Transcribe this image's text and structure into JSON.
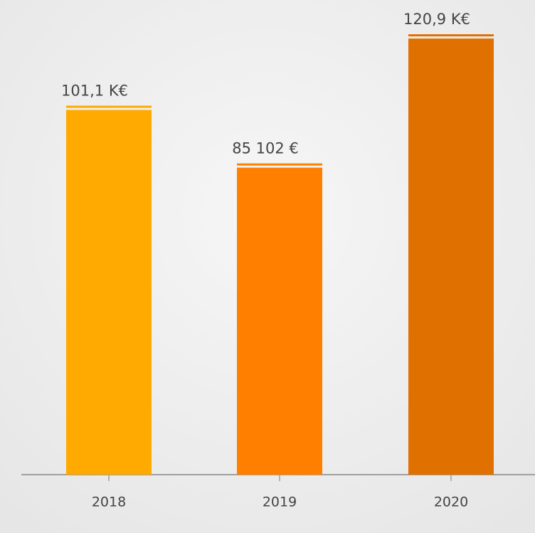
{
  "chart_data": {
    "type": "bar",
    "categories": [
      "2018",
      "2019",
      "2020"
    ],
    "values": [
      101100,
      85102,
      120900
    ],
    "value_labels": [
      "101,1 K€",
      "85 102 €",
      "120,9 K€"
    ],
    "colors": [
      "#ffaa00",
      "#ff8000",
      "#e07000"
    ],
    "ylim": [
      0,
      130000
    ]
  }
}
